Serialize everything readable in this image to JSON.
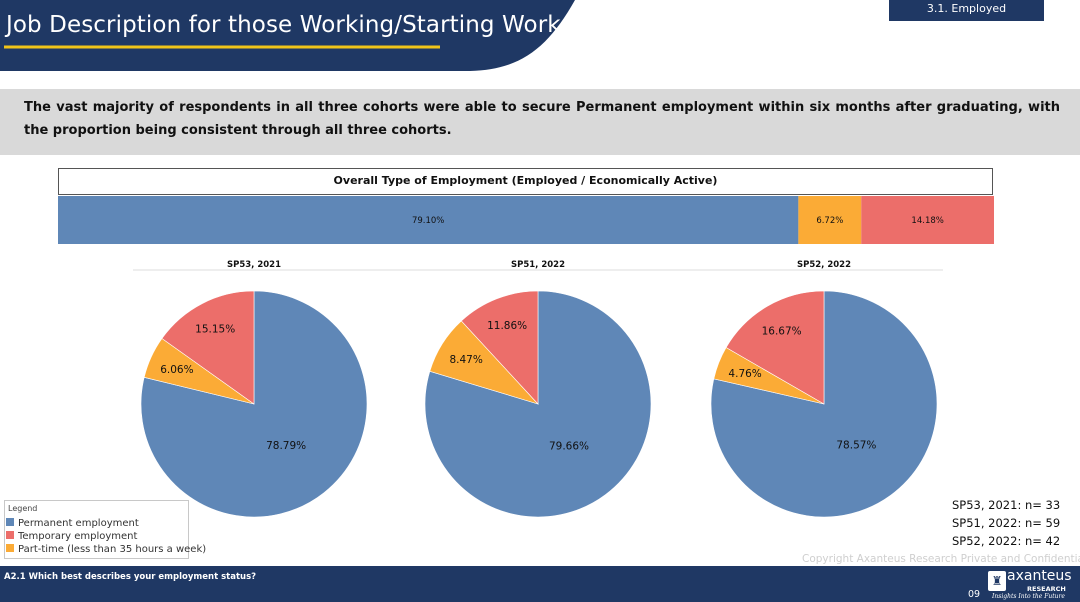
{
  "header": {
    "title": "Job Description for those Working/Starting Work",
    "section": "3.1. Employed"
  },
  "summary": "The vast majority of respondents in all three cohorts were able to secure Permanent employment within six months after graduating, with the proportion being consistent through all three cohorts.",
  "colors": {
    "permanent": "#5f87b7",
    "temporary": "#ec6e6a",
    "parttime": "#fbab36",
    "navy": "#1f3864",
    "accent": "#f0c419"
  },
  "chart_data": [
    {
      "type": "bar",
      "orientation": "horizontal-stacked",
      "title": "Overall Type of Employment (Employed / Economically Active)",
      "series": [
        {
          "name": "Permanent employment",
          "value": 79.1,
          "label": "79.10%"
        },
        {
          "name": "Part-time (less than 35 hours a week)",
          "value": 6.72,
          "label": "6.72%"
        },
        {
          "name": "Temporary employment",
          "value": 14.18,
          "label": "14.18%"
        }
      ]
    },
    {
      "type": "pie",
      "title": "SP53, 2021",
      "slices": [
        {
          "name": "Permanent employment",
          "value": 78.79,
          "label": "78.79%"
        },
        {
          "name": "Part-time (less than 35 hours a week)",
          "value": 6.06,
          "label": "6.06%"
        },
        {
          "name": "Temporary employment",
          "value": 15.15,
          "label": "15.15%"
        }
      ]
    },
    {
      "type": "pie",
      "title": "SP51, 2022",
      "slices": [
        {
          "name": "Permanent employment",
          "value": 79.66,
          "label": "79.66%"
        },
        {
          "name": "Part-time (less than 35 hours a week)",
          "value": 8.47,
          "label": "8.47%"
        },
        {
          "name": "Temporary employment",
          "value": 11.86,
          "label": "11.86%"
        }
      ]
    },
    {
      "type": "pie",
      "title": "SP52, 2022",
      "slices": [
        {
          "name": "Permanent employment",
          "value": 78.57,
          "label": "78.57%"
        },
        {
          "name": "Part-time (less than 35 hours a week)",
          "value": 4.76,
          "label": "4.76%"
        },
        {
          "name": "Temporary employment",
          "value": 16.67,
          "label": "16.67%"
        }
      ]
    }
  ],
  "legend": {
    "title": "Legend",
    "items": [
      {
        "label": "Permanent employment",
        "color": "#5f87b7"
      },
      {
        "label": "Temporary employment",
        "color": "#ec6e6a"
      },
      {
        "label": "Part-time (less than 35 hours a week)",
        "color": "#fbab36"
      }
    ]
  },
  "sample_sizes": [
    "SP53, 2021: n= 33",
    "SP51, 2022: n= 59",
    "SP52, 2022: n= 42"
  ],
  "copyright": "Copyright Axanteus Research Private and Confidential",
  "footer": {
    "question": "A2.1  Which best describes your employment status?",
    "page": "09",
    "logo_name": "axanteus",
    "logo_sub": "RESEARCH",
    "logo_tag": "Insights Into the Future",
    "logo_icon": "building-icon"
  }
}
